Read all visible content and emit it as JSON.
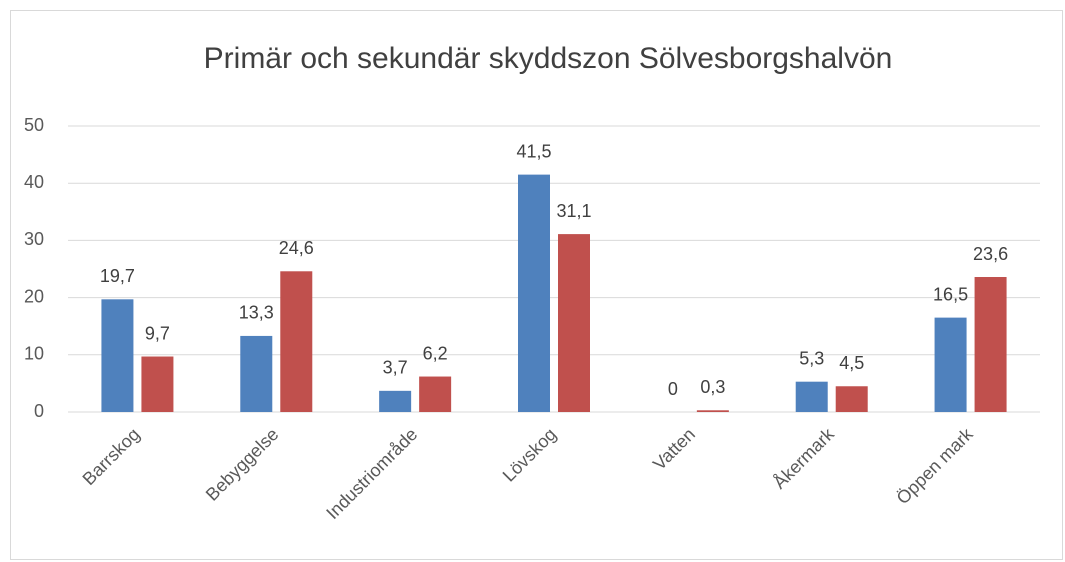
{
  "chart_data": {
    "type": "bar",
    "title": "Primär och sekundär skyddszon Sölvesborgshalvön",
    "categories": [
      "Barrskog",
      "Bebyggelse",
      "Industriområde",
      "Lövskog",
      "Vatten",
      "Åkermark",
      "Öppen mark"
    ],
    "series": [
      {
        "color": "#4f81bd",
        "values": [
          19.7,
          13.3,
          3.7,
          41.5,
          0,
          5.3,
          16.5
        ],
        "value_labels": [
          "19,7",
          "13,3",
          "3,7",
          "41,5",
          "0",
          "5,3",
          "16,5"
        ]
      },
      {
        "color": "#c0504d",
        "values": [
          9.7,
          24.6,
          6.2,
          31.1,
          0.3,
          4.5,
          23.6
        ],
        "value_labels": [
          "9,7",
          "24,6",
          "6,2",
          "31,1",
          "0,3",
          "4,5",
          "23,6"
        ]
      }
    ],
    "ylim": [
      0,
      50
    ],
    "yticks": [
      0,
      10,
      20,
      30,
      40,
      50
    ],
    "grid": true
  }
}
